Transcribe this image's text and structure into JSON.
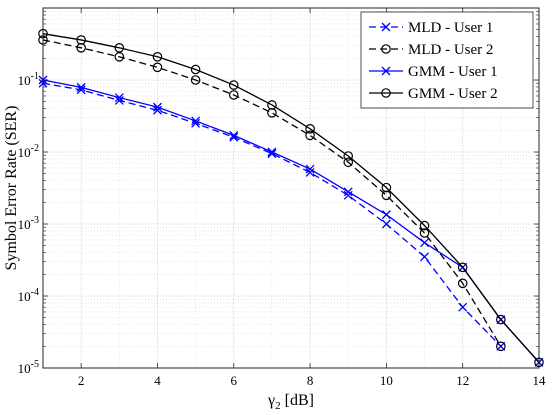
{
  "chart_data": {
    "type": "line",
    "xlabel": "γ2 [dB]",
    "xlabel_base": "γ",
    "xlabel_sub": "2",
    "xlabel_unit": "[dB]",
    "ylabel": "Symbol Error Rate (SER)",
    "xlim": [
      1,
      14
    ],
    "ylim": [
      1e-05,
      1
    ],
    "yscale": "log",
    "xticks": [
      2,
      4,
      6,
      8,
      10,
      12,
      14
    ],
    "yticks": [
      {
        "value": 1e-05,
        "base": "10",
        "exp": "-5"
      },
      {
        "value": 0.0001,
        "base": "10",
        "exp": "-4"
      },
      {
        "value": 0.001,
        "base": "10",
        "exp": "-3"
      },
      {
        "value": 0.01,
        "base": "10",
        "exp": "-2"
      },
      {
        "value": 0.1,
        "base": "10",
        "exp": "-1"
      }
    ],
    "grid": true,
    "legend_position": "top-right",
    "series": [
      {
        "name": "MLD - User 1",
        "color": "#0000ff",
        "dash": "dashed",
        "marker": "x",
        "x": [
          1,
          2,
          3,
          4,
          5,
          6,
          7,
          8,
          9,
          10,
          11,
          12,
          13
        ],
        "y": [
          0.09,
          0.073,
          0.052,
          0.038,
          0.025,
          0.016,
          0.0095,
          0.0052,
          0.0025,
          0.001,
          0.00035,
          7e-05,
          2e-05
        ]
      },
      {
        "name": "MLD - User 2",
        "color": "#000000",
        "dash": "dashed",
        "marker": "o",
        "x": [
          1,
          2,
          3,
          4,
          5,
          6,
          7,
          8,
          9,
          10,
          11,
          12,
          13
        ],
        "y": [
          0.36,
          0.28,
          0.21,
          0.15,
          0.1,
          0.062,
          0.035,
          0.017,
          0.0072,
          0.0025,
          0.00075,
          0.00015,
          2e-05
        ]
      },
      {
        "name": "GMM - User 1",
        "color": "#0000ff",
        "dash": "solid",
        "marker": "x",
        "x": [
          1,
          2,
          3,
          4,
          5,
          6,
          7,
          8,
          9,
          10,
          11,
          12,
          13,
          14
        ],
        "y": [
          0.1,
          0.079,
          0.057,
          0.042,
          0.027,
          0.017,
          0.01,
          0.0058,
          0.0028,
          0.00135,
          0.00055,
          0.00025,
          4.7e-05,
          1.2e-05
        ]
      },
      {
        "name": "GMM - User 2",
        "color": "#000000",
        "dash": "solid",
        "marker": "o",
        "x": [
          1,
          2,
          3,
          4,
          5,
          6,
          7,
          8,
          9,
          10,
          11,
          12,
          13,
          14
        ],
        "y": [
          0.44,
          0.36,
          0.28,
          0.21,
          0.14,
          0.085,
          0.045,
          0.021,
          0.0088,
          0.0032,
          0.00095,
          0.00025,
          4.7e-05,
          1.2e-05
        ]
      }
    ]
  }
}
